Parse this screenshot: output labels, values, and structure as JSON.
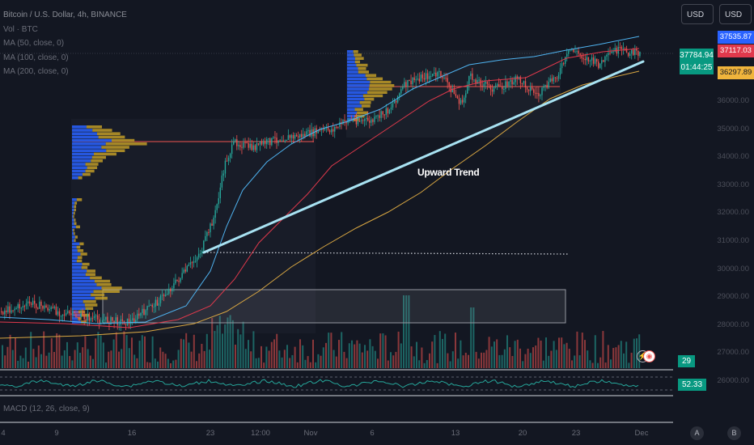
{
  "legend": {
    "title": "Bitcoin / U.S. Dollar, 4h, BINANCE",
    "vol": "Vol · BTC",
    "ma1": "MA (50, close, 0)",
    "ma2": "MA (100, close, 0)",
    "ma3": "MA (200, close, 0)"
  },
  "currency_buttons": [
    "USD",
    "USD"
  ],
  "price_tags": {
    "blue": "37535.87",
    "red": "37117.03",
    "orange": "36297.89",
    "last_price": "37784.94",
    "countdown": "01:44:25"
  },
  "y_axis_labels": [
    "36000.00",
    "35000.00",
    "34000.00",
    "33000.00",
    "32000.00",
    "31000.00",
    "30000.00",
    "29000.00",
    "28000.00",
    "27000.00",
    "26000.00"
  ],
  "annotation": "Upward Trend",
  "volume_value": "29",
  "rsi_value": "52.33",
  "macd_label": "MACD (12, 26, close, 9)",
  "x_axis_labels": [
    "4",
    "9",
    "16",
    "23",
    "12:00",
    "Nov",
    "6",
    "13",
    "20",
    "23",
    "Dec"
  ],
  "bottom_buttons": [
    "A",
    "B"
  ],
  "colors": {
    "bg": "#131722",
    "up": "#26a69a",
    "down": "#ef5350",
    "ma50": "#4fb3f0",
    "ma100": "#e0394c",
    "ma200": "#d9a742",
    "trendline": "#a8e2f2",
    "vp_blue": "#2962ff",
    "vp_gold": "#c9a227",
    "accent_green": "#089981"
  }
}
